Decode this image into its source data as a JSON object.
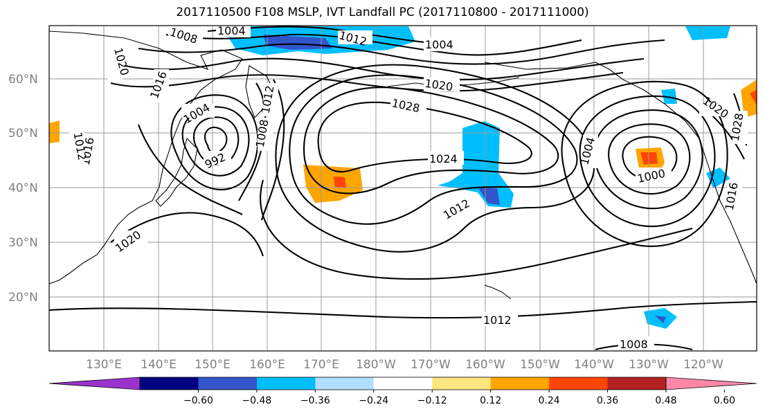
{
  "title": "2017110500 F108 MSLP, IVT Landfall PC (2017110800 - 2017111000)",
  "lat_labels": [
    "60°N",
    "50°N",
    "40°N",
    "30°N",
    "20°N"
  ],
  "lon_labels": [
    "130°E",
    "140°E",
    "150°E",
    "160°E",
    "170°E",
    "180°W",
    "170°W",
    "160°W",
    "150°W",
    "140°W",
    "130°W",
    "120°W"
  ],
  "contour_labels": [
    "1004",
    "1008",
    "1012",
    "1004",
    "1020",
    "1016",
    "1004",
    "992",
    "1008",
    "1012",
    "1016",
    "1012",
    "1020",
    "1028",
    "1024",
    "1012",
    "1020",
    "1004",
    "1000",
    "1028",
    "1016",
    "1012",
    "1008",
    "1020"
  ],
  "colorbar": {
    "ticks": [
      "−0.60",
      "−0.48",
      "−0.36",
      "−0.24",
      "−0.12",
      "0.12",
      "0.24",
      "0.36",
      "0.48",
      "0.60"
    ],
    "colors": [
      "#9933cc",
      "#000080",
      "#3355cc",
      "#00bfff",
      "#b0e0ff",
      "#ffffff",
      "#ffe680",
      "#ffa500",
      "#ff4500",
      "#b22222",
      "#ff88aa"
    ]
  },
  "fill_colors": {
    "pos1": "#ffa500",
    "pos2": "#ff4500",
    "neg1": "#00bfff",
    "neg2": "#3355cc"
  }
}
